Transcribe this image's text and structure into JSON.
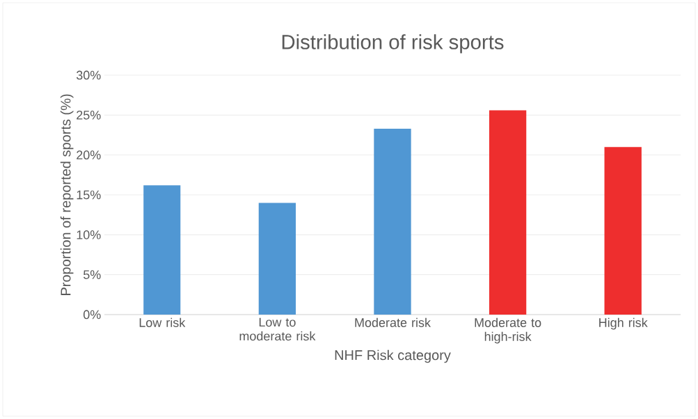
{
  "chart_data": {
    "type": "bar",
    "title": "Distribution of risk sports",
    "xlabel": "NHF Risk category",
    "ylabel": "Proportion of reported sports (%)",
    "categories": [
      "Low risk",
      "Low to moderate risk",
      "Moderate risk",
      "Moderate to high-risk",
      "High risk"
    ],
    "values": [
      16.2,
      14.0,
      23.3,
      25.6,
      21.0
    ],
    "colors": [
      "#5097d3",
      "#5097d3",
      "#5097d3",
      "#ee2e2e",
      "#ee2e2e"
    ],
    "ylim": [
      0,
      30
    ],
    "yticks": [
      {
        "value": 0,
        "label": "0%"
      },
      {
        "value": 5,
        "label": "5%"
      },
      {
        "value": 10,
        "label": "10%"
      },
      {
        "value": 15,
        "label": "15%"
      },
      {
        "value": 20,
        "label": "20%"
      },
      {
        "value": 25,
        "label": "25%"
      },
      {
        "value": 30,
        "label": "30%"
      }
    ],
    "grid": "y"
  }
}
